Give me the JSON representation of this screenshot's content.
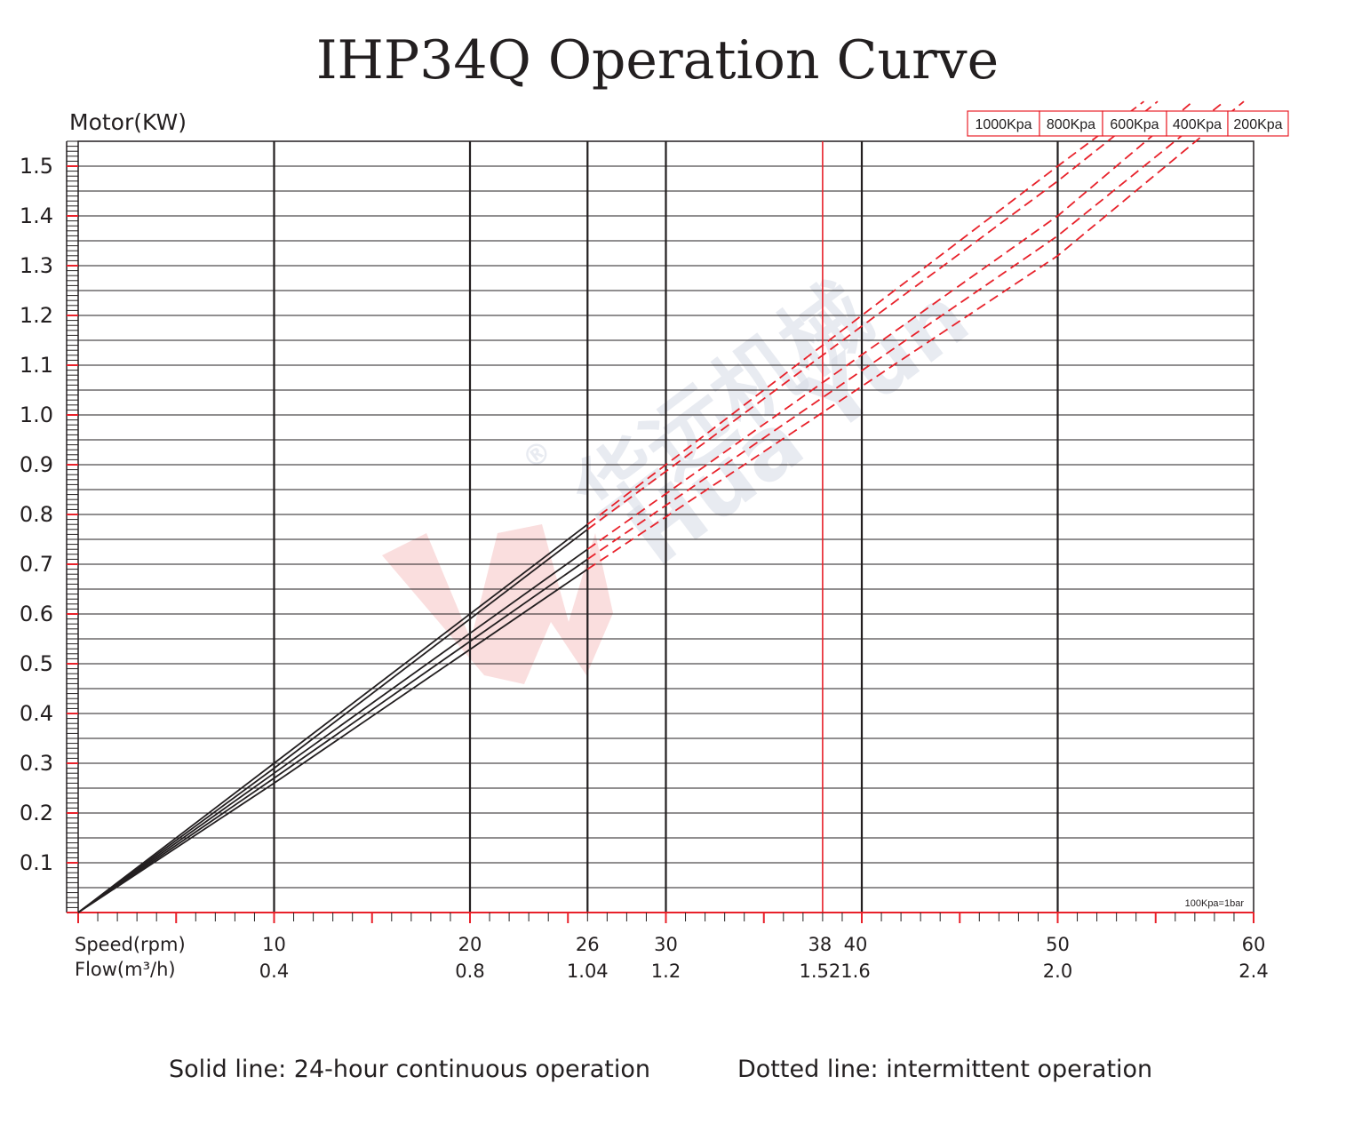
{
  "chart_data": {
    "type": "line",
    "title": "IHP34Q Operation Curve",
    "ylabel": "Motor(KW)",
    "xlabel": "Speed(rpm)",
    "x2label": "Flow(m³/h)",
    "xlim": [
      0,
      60
    ],
    "ylim": [
      0,
      1.55
    ],
    "x_ticks": [
      {
        "speed": 10,
        "speed_label": "10",
        "flow_label": "0.4",
        "major": true
      },
      {
        "speed": 20,
        "speed_label": "20",
        "flow_label": "0.8",
        "major": true
      },
      {
        "speed": 26,
        "speed_label": "26",
        "flow_label": "1.04",
        "major": true
      },
      {
        "speed": 30,
        "speed_label": "30",
        "flow_label": "1.2",
        "major": true
      },
      {
        "speed": 38,
        "speed_label": "38",
        "flow_label": "1.52",
        "major": false
      },
      {
        "speed": 40,
        "speed_label": "40",
        "flow_label": "1.6",
        "major": true
      },
      {
        "speed": 50,
        "speed_label": "50",
        "flow_label": "2.0",
        "major": true
      },
      {
        "speed": 60,
        "speed_label": "60",
        "flow_label": "2.4",
        "major": false
      }
    ],
    "y_ticks": [
      "0.1",
      "0.2",
      "0.3",
      "0.4",
      "0.5",
      "0.6",
      "0.7",
      "0.8",
      "0.9",
      "1.0",
      "1.1",
      "1.2",
      "1.3",
      "1.4",
      "1.5"
    ],
    "solid_end_speed": 26,
    "series": [
      {
        "name": "1000Kpa",
        "points": [
          [
            0,
            0
          ],
          [
            10,
            0.3
          ],
          [
            26,
            0.78
          ],
          [
            50,
            1.5
          ],
          [
            54.4,
            1.63
          ]
        ]
      },
      {
        "name": "800Kpa",
        "points": [
          [
            0,
            0
          ],
          [
            10,
            0.29
          ],
          [
            26,
            0.77
          ],
          [
            50,
            1.47
          ],
          [
            55.1,
            1.63
          ]
        ]
      },
      {
        "name": "600Kpa",
        "points": [
          [
            0,
            0
          ],
          [
            10,
            0.28
          ],
          [
            26,
            0.73
          ],
          [
            50,
            1.4
          ],
          [
            56.9,
            1.63
          ]
        ]
      },
      {
        "name": "400Kpa",
        "points": [
          [
            0,
            0
          ],
          [
            10,
            0.27
          ],
          [
            26,
            0.71
          ],
          [
            50,
            1.36
          ],
          [
            58.5,
            1.63
          ]
        ]
      },
      {
        "name": "200Kpa",
        "points": [
          [
            0,
            0
          ],
          [
            10,
            0.26
          ],
          [
            26,
            0.69
          ],
          [
            50,
            1.32
          ],
          [
            59.5,
            1.63
          ]
        ]
      }
    ],
    "legend": {
      "position": "top-right",
      "items": [
        "1000Kpa",
        "800Kpa",
        "600Kpa",
        "400Kpa",
        "200Kpa"
      ]
    },
    "annotation": "100Kpa=1bar",
    "grid": true,
    "solid_color": "#231f20",
    "dashed_color": "#e8212a",
    "highlight_color": "#e8212a"
  },
  "footer": {
    "solid_note": "Solid line: 24-hour continuous operation",
    "dotted_note": "Dotted line: intermittent operation"
  },
  "watermark": {
    "chinese": "华远机械",
    "latin": "Hua Yun",
    "mark": "®",
    "icon": "huayun-logo-icon"
  }
}
